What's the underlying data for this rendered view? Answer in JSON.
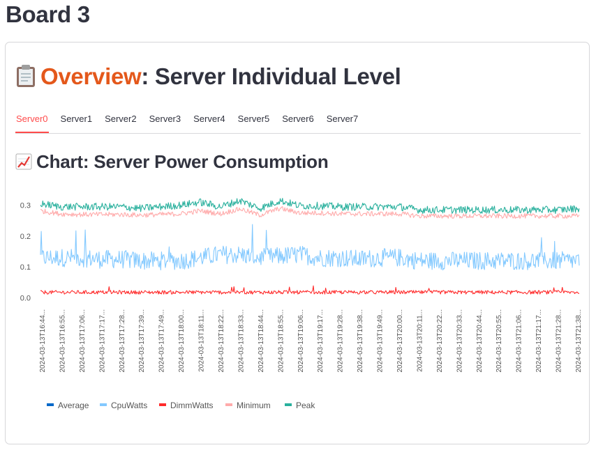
{
  "board": {
    "title": "Board 3"
  },
  "overview": {
    "highlight": "Overview",
    "rest": ": Server Individual Level",
    "icon": "clipboard-icon"
  },
  "tabs": [
    "Server0",
    "Server1",
    "Server2",
    "Server3",
    "Server4",
    "Server5",
    "Server6",
    "Server7"
  ],
  "active_tab": "Server0",
  "chart_header": {
    "title": "Chart: Server Power Consumption",
    "icon": "chart-increasing-icon"
  },
  "chart_data": {
    "type": "line",
    "title": "Chart: Server Power Consumption",
    "xlabel": "",
    "ylabel": "",
    "ylim": [
      -0.01,
      0.36
    ],
    "yticks": [
      0.0,
      0.1,
      0.2,
      0.3
    ],
    "ytick_labels": [
      "0.0",
      "0.1",
      "0.2",
      "0.3"
    ],
    "x_tick_labels": [
      "2024-03-13T16:44...",
      "2024-03-13T16:55...",
      "2024-03-13T17:06...",
      "2024-03-13T17:17...",
      "2024-03-13T17:28...",
      "2024-03-13T17:39...",
      "2024-03-13T17:49...",
      "2024-03-13T18:00...",
      "2024-03-13T18:11...",
      "2024-03-13T18:22...",
      "2024-03-13T18:33...",
      "2024-03-13T18:44...",
      "2024-03-13T18:55...",
      "2024-03-13T19:06...",
      "2024-03-13T19:17...",
      "2024-03-13T19:28...",
      "2024-03-13T19:38...",
      "2024-03-13T19:49...",
      "2024-03-13T20:00...",
      "2024-03-13T20:11...",
      "2024-03-13T20:22...",
      "2024-03-13T20:33...",
      "2024-03-13T20:44...",
      "2024-03-13T20:55...",
      "2024-03-13T21:06...",
      "2024-03-13T21:17...",
      "2024-03-13T21:28...",
      "2024-03-13T21:38..."
    ],
    "legend_position": "bottom-left",
    "series": [
      {
        "name": "Average",
        "color": "#0068c9",
        "base": [],
        "noise": 0
      },
      {
        "name": "CpuWatts",
        "color": "#83c9ff",
        "base": [
          0.13,
          0.13,
          0.13,
          0.125,
          0.125,
          0.12,
          0.12,
          0.12,
          0.13,
          0.14,
          0.14,
          0.13,
          0.135,
          0.14,
          0.13,
          0.13,
          0.125,
          0.13,
          0.13,
          0.12,
          0.12,
          0.12,
          0.12,
          0.12,
          0.12,
          0.12,
          0.12,
          0.12
        ],
        "noise": 0.03
      },
      {
        "name": "DimmWatts",
        "color": "#ff2b2b",
        "base": [
          0.018,
          0.018,
          0.018,
          0.018,
          0.018,
          0.018,
          0.018,
          0.018,
          0.018,
          0.018,
          0.018,
          0.018,
          0.018,
          0.018,
          0.018,
          0.018,
          0.018,
          0.018,
          0.018,
          0.018,
          0.018,
          0.018,
          0.018,
          0.018,
          0.018,
          0.018,
          0.018,
          0.018
        ],
        "noise": 0.006
      },
      {
        "name": "Minimum",
        "color": "#ffabab",
        "base": [
          0.282,
          0.272,
          0.27,
          0.27,
          0.27,
          0.268,
          0.27,
          0.272,
          0.282,
          0.272,
          0.288,
          0.268,
          0.29,
          0.275,
          0.275,
          0.272,
          0.272,
          0.272,
          0.272,
          0.265,
          0.265,
          0.265,
          0.265,
          0.265,
          0.265,
          0.265,
          0.265,
          0.265
        ],
        "noise": 0.008
      },
      {
        "name": "Peak",
        "color": "#29b09d",
        "base": [
          0.305,
          0.295,
          0.295,
          0.295,
          0.295,
          0.29,
          0.295,
          0.3,
          0.31,
          0.295,
          0.315,
          0.29,
          0.315,
          0.298,
          0.298,
          0.295,
          0.295,
          0.295,
          0.295,
          0.285,
          0.285,
          0.285,
          0.285,
          0.285,
          0.285,
          0.285,
          0.285,
          0.29
        ],
        "noise": 0.012
      }
    ]
  }
}
